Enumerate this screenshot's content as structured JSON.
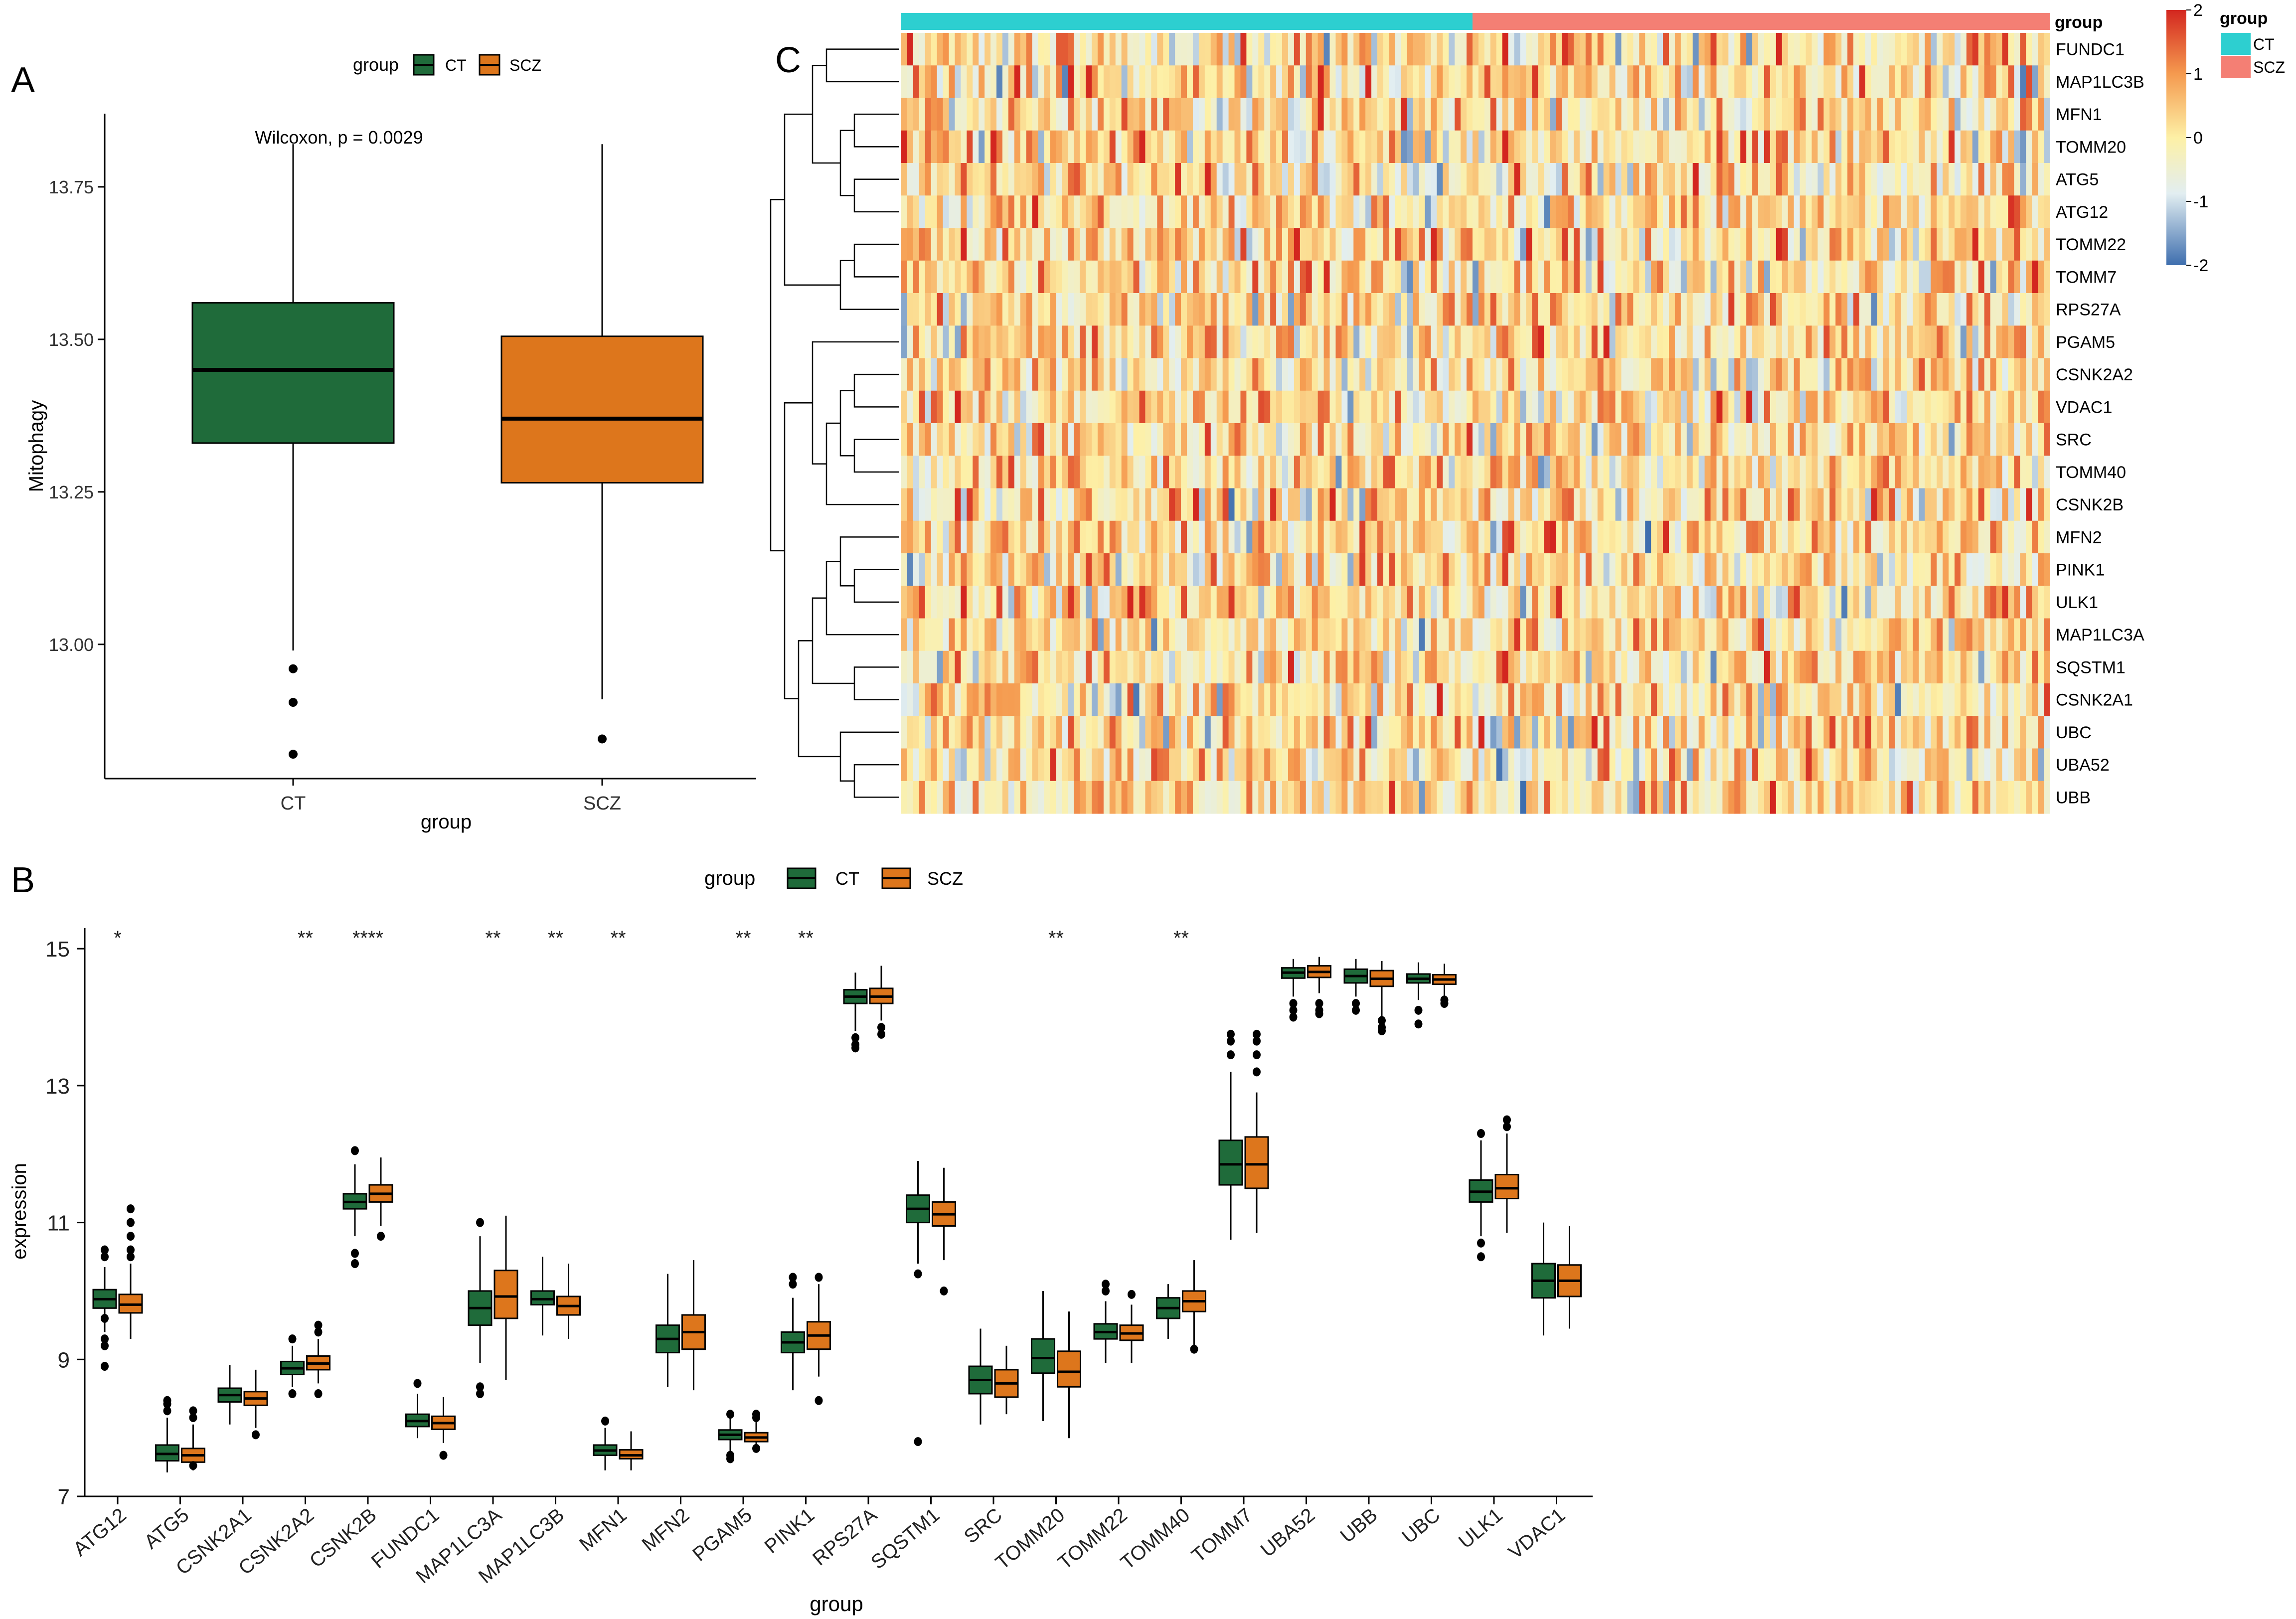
{
  "colors": {
    "ct": "#1F6B3A",
    "scz": "#DD761C",
    "ct_bar": "#2DCFD0",
    "scz_bar": "#F47F74",
    "hm_red": "#D3261F",
    "hm_orange": "#F59A4F",
    "hm_yellow": "#FDF0A6",
    "hm_light": "#E2EEF1",
    "hm_blue": "#3E6EAE"
  },
  "panels": {
    "a": "A",
    "b": "B",
    "c": "C"
  },
  "legend": {
    "title": "group",
    "ct": "CT",
    "scz": "SCZ"
  },
  "chart_data": [
    {
      "id": "A",
      "type": "box",
      "title": "",
      "annotation": "Wilcoxon, p = 0.0029",
      "xlabel": "group",
      "ylabel": "Mitophagy",
      "categories": [
        "CT",
        "SCZ"
      ],
      "ylim": [
        12.78,
        13.87
      ],
      "yticks": [
        13.0,
        13.25,
        13.5,
        13.75
      ],
      "ytick_labels": [
        "13.00",
        "13.25",
        "13.50",
        "13.75"
      ],
      "boxes": [
        {
          "group": "CT",
          "q1": 13.33,
          "median": 13.45,
          "q3": 13.56,
          "whisker_low": 12.99,
          "whisker_high": 13.82,
          "outliers": [
            12.96,
            12.905,
            12.82
          ]
        },
        {
          "group": "SCZ",
          "q1": 13.265,
          "median": 13.37,
          "q3": 13.505,
          "whisker_low": 12.91,
          "whisker_high": 13.82,
          "outliers": [
            12.845
          ]
        }
      ]
    },
    {
      "id": "B",
      "type": "grouped-box",
      "xlabel": "group",
      "ylabel": "expression",
      "ylim": [
        7,
        15.3
      ],
      "yticks": [
        7,
        9,
        11,
        13,
        15
      ],
      "series": [
        "CT",
        "SCZ"
      ],
      "categories": [
        "ATG12",
        "ATG5",
        "CSNK2A1",
        "CSNK2A2",
        "CSNK2B",
        "FUNDC1",
        "MAP1LC3A",
        "MAP1LC3B",
        "MFN1",
        "MFN2",
        "PGAM5",
        "PINK1",
        "RPS27A",
        "SQSTM1",
        "SRC",
        "TOMM20",
        "TOMM22",
        "TOMM40",
        "TOMM7",
        "UBA52",
        "UBB",
        "UBC",
        "ULK1",
        "VDAC1"
      ],
      "significance": [
        "*",
        "",
        "",
        "**",
        "****",
        "",
        "**",
        "**",
        "**",
        "",
        "**",
        "**",
        "",
        "",
        "",
        "**",
        "",
        "**",
        "",
        "",
        "",
        "",
        "",
        ""
      ],
      "boxes": {
        "CT": [
          [
            9.75,
            9.88,
            10.02,
            9.4,
            10.35,
            [
              10.6,
              10.5,
              9.3,
              9.2,
              8.9,
              9.6
            ]
          ],
          [
            7.52,
            7.62,
            7.75,
            7.35,
            8.15,
            [
              8.25,
              8.35,
              8.4
            ]
          ],
          [
            8.38,
            8.48,
            8.58,
            8.05,
            8.92,
            []
          ],
          [
            8.78,
            8.87,
            8.97,
            8.6,
            9.2,
            [
              9.3,
              8.5
            ]
          ],
          [
            11.2,
            11.3,
            11.42,
            10.8,
            11.85,
            [
              12.05,
              10.55,
              10.4
            ]
          ],
          [
            8.02,
            8.1,
            8.2,
            7.85,
            8.5,
            [
              8.65
            ]
          ],
          [
            9.5,
            9.75,
            10.0,
            8.95,
            10.8,
            [
              11.0,
              8.6,
              8.5
            ]
          ],
          [
            9.8,
            9.88,
            10.0,
            9.35,
            10.5,
            []
          ],
          [
            7.6,
            7.67,
            7.75,
            7.38,
            8.0,
            [
              8.1
            ]
          ],
          [
            9.1,
            9.3,
            9.5,
            8.6,
            10.25,
            []
          ],
          [
            7.83,
            7.9,
            7.97,
            7.65,
            8.15,
            [
              8.2,
              7.6,
              7.55
            ]
          ],
          [
            9.1,
            9.25,
            9.4,
            8.55,
            9.9,
            [
              10.2,
              10.1
            ]
          ],
          [
            14.2,
            14.3,
            14.4,
            13.8,
            14.65,
            [
              13.7,
              13.6,
              13.55
            ]
          ],
          [
            11.0,
            11.2,
            11.4,
            10.4,
            11.9,
            [
              10.25,
              7.8
            ]
          ],
          [
            8.5,
            8.7,
            8.9,
            8.05,
            9.45,
            []
          ],
          [
            8.8,
            9.02,
            9.3,
            8.1,
            10.0,
            []
          ],
          [
            9.3,
            9.4,
            9.52,
            8.95,
            9.85,
            [
              10.0,
              10.1
            ]
          ],
          [
            9.6,
            9.75,
            9.9,
            9.3,
            10.1,
            []
          ],
          [
            11.55,
            11.85,
            12.2,
            10.75,
            13.2,
            [
              13.45,
              13.65,
              13.75
            ]
          ],
          [
            14.57,
            14.65,
            14.72,
            14.3,
            14.85,
            [
              14.0,
              14.1,
              14.2
            ]
          ],
          [
            14.5,
            14.6,
            14.7,
            14.3,
            14.85,
            [
              14.1,
              14.2
            ]
          ],
          [
            14.5,
            14.56,
            14.63,
            14.25,
            14.8,
            [
              13.9,
              14.1
            ]
          ],
          [
            11.3,
            11.45,
            11.62,
            10.8,
            12.2,
            [
              12.3,
              10.7,
              10.5
            ]
          ],
          [
            9.9,
            10.15,
            10.4,
            9.35,
            11.0,
            []
          ]
        ],
        "SCZ": [
          [
            9.68,
            9.8,
            9.95,
            9.3,
            10.4,
            [
              11.2,
              11.0,
              10.8,
              10.6,
              10.5
            ]
          ],
          [
            7.5,
            7.6,
            7.7,
            7.38,
            8.05,
            [
              8.15,
              8.25,
              7.45
            ]
          ],
          [
            8.33,
            8.43,
            8.53,
            8.0,
            8.85,
            [
              7.9
            ]
          ],
          [
            8.85,
            8.94,
            9.05,
            8.65,
            9.3,
            [
              9.4,
              9.5,
              8.5
            ]
          ],
          [
            11.3,
            11.42,
            11.55,
            10.95,
            11.95,
            [
              10.8
            ]
          ],
          [
            7.98,
            8.07,
            8.17,
            7.78,
            8.45,
            [
              7.6
            ]
          ],
          [
            9.6,
            9.92,
            10.3,
            8.7,
            11.1,
            []
          ],
          [
            9.65,
            9.78,
            9.92,
            9.3,
            10.4,
            []
          ],
          [
            7.55,
            7.6,
            7.68,
            7.38,
            7.95,
            []
          ],
          [
            9.15,
            9.4,
            9.65,
            8.55,
            10.45,
            []
          ],
          [
            7.8,
            7.86,
            7.93,
            7.65,
            8.1,
            [
              8.2,
              8.15,
              7.7
            ]
          ],
          [
            9.15,
            9.35,
            9.55,
            8.75,
            10.1,
            [
              10.2,
              8.4
            ]
          ],
          [
            14.2,
            14.3,
            14.42,
            13.95,
            14.75,
            [
              13.75,
              13.85
            ]
          ],
          [
            10.95,
            11.12,
            11.3,
            10.45,
            11.8,
            [
              10.0
            ]
          ],
          [
            8.45,
            8.65,
            8.85,
            8.2,
            9.2,
            []
          ],
          [
            8.6,
            8.82,
            9.12,
            7.85,
            9.7,
            []
          ],
          [
            9.28,
            9.38,
            9.5,
            8.95,
            9.8,
            [
              9.95
            ]
          ],
          [
            9.7,
            9.85,
            10.0,
            9.2,
            10.45,
            [
              9.15
            ]
          ],
          [
            11.5,
            11.85,
            12.25,
            10.85,
            12.9,
            [
              13.2,
              13.45,
              13.65,
              13.75
            ]
          ],
          [
            14.58,
            14.66,
            14.75,
            14.35,
            14.88,
            [
              14.05,
              14.1,
              14.2
            ]
          ],
          [
            14.45,
            14.56,
            14.68,
            14.0,
            14.82,
            [
              13.85,
              13.95,
              13.8
            ]
          ],
          [
            14.48,
            14.55,
            14.62,
            14.3,
            14.78,
            [
              14.2,
              14.25
            ]
          ],
          [
            11.35,
            11.5,
            11.7,
            10.85,
            12.3,
            [
              12.4,
              12.5
            ]
          ],
          [
            9.92,
            10.15,
            10.38,
            9.45,
            10.95,
            []
          ]
        ]
      }
    },
    {
      "id": "C",
      "type": "heatmap",
      "row_labels": [
        "FUNDC1",
        "MAP1LC3B",
        "MFN1",
        "TOMM20",
        "ATG5",
        "ATG12",
        "TOMM22",
        "TOMM7",
        "RPS27A",
        "PGAM5",
        "CSNK2A2",
        "VDAC1",
        "SRC",
        "TOMM40",
        "CSNK2B",
        "MFN2",
        "PINK1",
        "ULK1",
        "MAP1LC3A",
        "SQSTM1",
        "CSNK2A1",
        "UBC",
        "UBA52",
        "UBB"
      ],
      "annotation_label": "group",
      "annotation_groups": [
        "CT",
        "SCZ"
      ],
      "colorbar_ticks": [
        2,
        1,
        0,
        -1,
        -2
      ],
      "colorbar_labels": [
        "2",
        "1",
        "0",
        "-1",
        "-2"
      ],
      "columns": {
        "CT": 96,
        "SCZ": 97
      },
      "values_note": "z-scored expression per gene; individual cell values not legible"
    }
  ]
}
